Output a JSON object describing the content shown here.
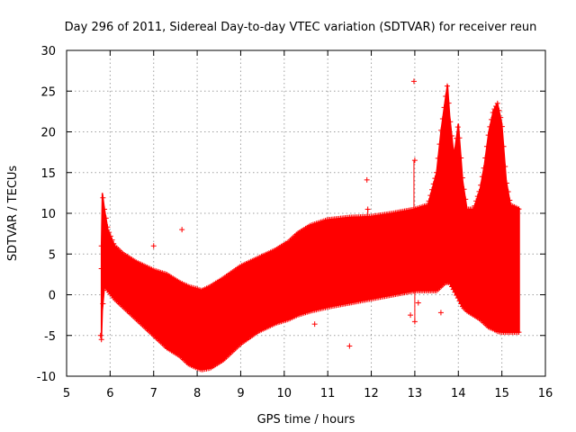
{
  "chart_data": {
    "type": "scatter",
    "title": "Day 296 of 2011, Sidereal Day-to-day VTEC variation (SDTVAR) for receiver reun",
    "xlabel": "GPS time / hours",
    "ylabel": "SDTVAR / TECUs",
    "xlim": [
      5,
      16
    ],
    "ylim": [
      -10,
      30
    ],
    "xticks": [
      5,
      6,
      7,
      8,
      9,
      10,
      11,
      12,
      13,
      14,
      15,
      16
    ],
    "yticks": [
      -10,
      -5,
      0,
      5,
      10,
      15,
      20,
      25,
      30
    ],
    "grid": true,
    "marker": "+",
    "color": "#ff0000",
    "series": [
      {
        "name": "band_upper",
        "x": [
          5.8,
          5.82,
          5.87,
          5.95,
          6.1,
          6.3,
          6.6,
          7.0,
          7.3,
          7.6,
          7.8,
          8.0,
          8.1,
          8.3,
          8.6,
          9.0,
          9.4,
          9.8,
          10.1,
          10.3,
          10.6,
          11.0,
          11.5,
          12.0,
          12.5,
          13.0,
          13.3,
          13.5,
          13.6,
          13.7,
          13.75,
          13.8,
          13.9,
          14.0,
          14.1,
          14.2,
          14.35,
          14.5,
          14.6,
          14.7,
          14.8,
          14.9,
          15.0,
          15.1,
          15.2,
          15.4
        ],
        "values": [
          6.0,
          12.5,
          10.5,
          8.0,
          6.0,
          5.0,
          4.0,
          3.0,
          2.5,
          1.5,
          1.0,
          0.7,
          0.5,
          1.0,
          2.0,
          3.5,
          4.5,
          5.5,
          6.5,
          7.5,
          8.5,
          9.2,
          9.5,
          9.6,
          10.0,
          10.5,
          11.0,
          15.0,
          20.0,
          24.0,
          25.8,
          22.0,
          17.0,
          21.0,
          14.0,
          10.5,
          10.5,
          13.0,
          16.0,
          20.0,
          22.5,
          23.5,
          21.0,
          14.0,
          11.0,
          10.5
        ]
      },
      {
        "name": "band_lower",
        "x": [
          5.8,
          5.82,
          5.87,
          5.95,
          6.1,
          6.3,
          6.6,
          7.0,
          7.3,
          7.6,
          7.8,
          8.0,
          8.1,
          8.3,
          8.6,
          9.0,
          9.4,
          9.8,
          10.1,
          10.3,
          10.6,
          11.0,
          11.5,
          12.0,
          12.5,
          13.0,
          13.3,
          13.5,
          13.6,
          13.7,
          13.75,
          13.8,
          13.9,
          14.0,
          14.1,
          14.2,
          14.35,
          14.5,
          14.6,
          14.7,
          14.8,
          14.9,
          15.0,
          15.1,
          15.2,
          15.4
        ],
        "values": [
          -5.5,
          -2.0,
          1.0,
          0.5,
          -0.5,
          -1.5,
          -3.0,
          -5.0,
          -6.5,
          -7.5,
          -8.5,
          -9.0,
          -9.2,
          -9.0,
          -8.0,
          -6.0,
          -4.5,
          -3.5,
          -3.0,
          -2.5,
          -2.0,
          -1.5,
          -1.0,
          -0.5,
          0.0,
          0.5,
          0.5,
          0.5,
          1.0,
          1.5,
          1.5,
          1.5,
          0.5,
          -0.5,
          -1.5,
          -2.0,
          -2.5,
          -3.0,
          -3.5,
          -4.0,
          -4.2,
          -4.5,
          -4.6,
          -4.6,
          -4.6,
          -4.6
        ]
      },
      {
        "name": "outliers",
        "x": [
          7.0,
          7.65,
          11.5,
          11.9,
          11.92,
          12.9,
          12.98,
          13.0,
          13.0,
          13.6,
          13.08,
          5.78,
          5.8,
          10.7
        ],
        "values": [
          6.0,
          8.0,
          -6.3,
          14.1,
          10.5,
          -2.5,
          26.2,
          16.5,
          -3.3,
          -2.2,
          -1.0,
          -5.0,
          3.2,
          -3.6
        ]
      }
    ]
  }
}
